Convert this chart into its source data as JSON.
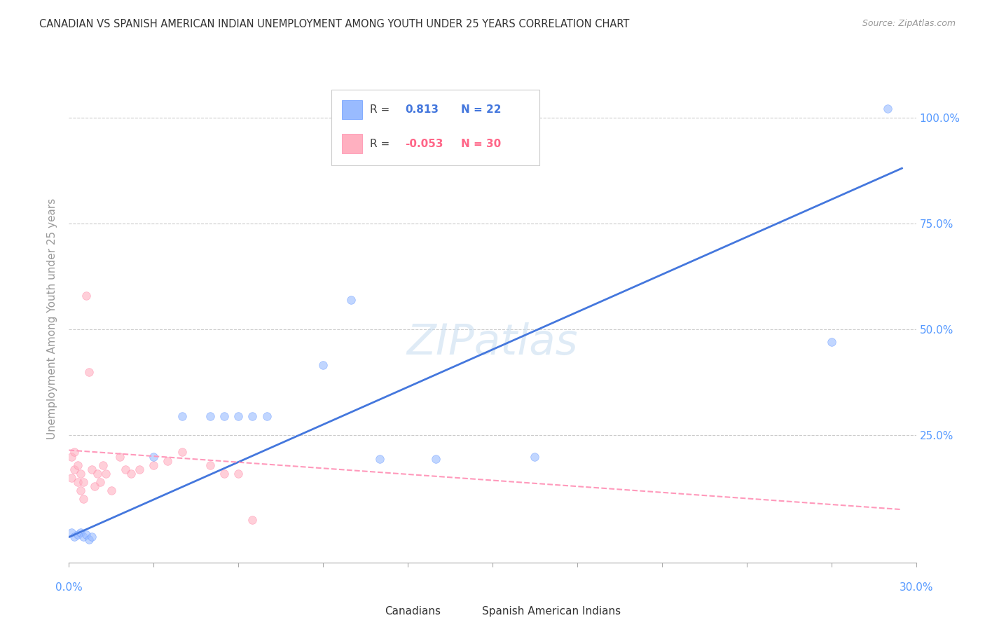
{
  "title": "CANADIAN VS SPANISH AMERICAN INDIAN UNEMPLOYMENT AMONG YOUTH UNDER 25 YEARS CORRELATION CHART",
  "source": "Source: ZipAtlas.com",
  "ylabel": "Unemployment Among Youth under 25 years",
  "yticks_right": [
    "100.0%",
    "75.0%",
    "50.0%",
    "25.0%"
  ],
  "ytick_values": [
    1.0,
    0.75,
    0.5,
    0.25
  ],
  "xlim": [
    0.0,
    0.3
  ],
  "ylim": [
    -0.05,
    1.1
  ],
  "watermark": "ZIPatlas",
  "blue_color": "#99BBFF",
  "pink_color": "#FFB0C0",
  "blue_edge_color": "#6699FF",
  "pink_edge_color": "#FF88AA",
  "blue_line_color": "#4477DD",
  "pink_line_color": "#FF99BB",
  "blue_scatter_x": [
    0.001,
    0.002,
    0.003,
    0.004,
    0.005,
    0.006,
    0.007,
    0.008,
    0.03,
    0.04,
    0.05,
    0.055,
    0.06,
    0.065,
    0.07,
    0.09,
    0.1,
    0.11,
    0.13,
    0.165,
    0.27,
    0.29
  ],
  "blue_scatter_y": [
    0.02,
    0.01,
    0.015,
    0.02,
    0.01,
    0.015,
    0.005,
    0.01,
    0.2,
    0.295,
    0.295,
    0.295,
    0.295,
    0.295,
    0.295,
    0.415,
    0.57,
    0.195,
    0.195,
    0.2,
    0.47,
    1.02
  ],
  "pink_scatter_x": [
    0.001,
    0.001,
    0.002,
    0.002,
    0.003,
    0.003,
    0.004,
    0.004,
    0.005,
    0.005,
    0.006,
    0.007,
    0.008,
    0.009,
    0.01,
    0.011,
    0.012,
    0.013,
    0.015,
    0.018,
    0.02,
    0.022,
    0.025,
    0.03,
    0.035,
    0.04,
    0.05,
    0.055,
    0.06,
    0.065
  ],
  "pink_scatter_y": [
    0.2,
    0.15,
    0.17,
    0.21,
    0.14,
    0.18,
    0.12,
    0.16,
    0.1,
    0.14,
    0.58,
    0.4,
    0.17,
    0.13,
    0.16,
    0.14,
    0.18,
    0.16,
    0.12,
    0.2,
    0.17,
    0.16,
    0.17,
    0.18,
    0.19,
    0.21,
    0.18,
    0.16,
    0.16,
    0.05
  ],
  "blue_trendline_x": [
    0.0,
    0.295
  ],
  "blue_trendline_y": [
    0.01,
    0.88
  ],
  "pink_trendline_x": [
    0.0,
    0.295
  ],
  "pink_trendline_y": [
    0.215,
    0.075
  ],
  "background_color": "#FFFFFF",
  "grid_color": "#CCCCCC",
  "axis_tick_color": "#AAAAAA",
  "right_axis_color": "#5599FF",
  "title_color": "#333333",
  "source_color": "#999999",
  "ylabel_color": "#999999",
  "marker_size": 70,
  "marker_alpha": 0.6
}
